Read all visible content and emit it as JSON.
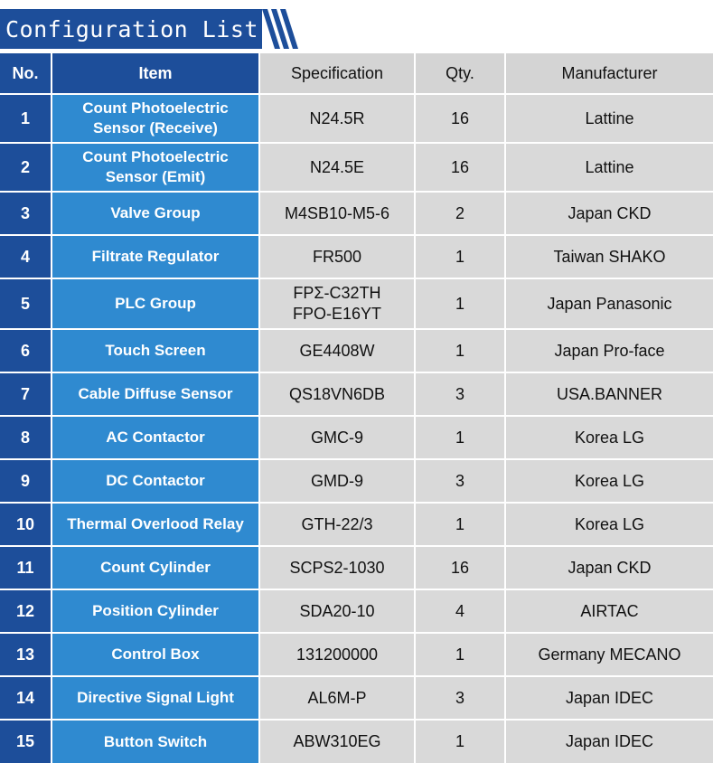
{
  "title": "Configuration List",
  "colors": {
    "dark_blue": "#1d4e9a",
    "item_blue": "#2f8ad0",
    "cell_grey": "#d9d9d9",
    "header_grey": "#d4d4d4"
  },
  "table": {
    "headers": {
      "no": "No.",
      "item": "Item",
      "specification": "Specification",
      "qty": "Qty.",
      "manufacturer": "Manufacturer"
    },
    "rows": [
      {
        "no": "1",
        "item_lines": [
          "Count Photoelectric",
          "Sensor (Receive)"
        ],
        "spec_lines": [
          "N24.5R"
        ],
        "qty": "16",
        "manufacturer": "Lattine"
      },
      {
        "no": "2",
        "item_lines": [
          "Count Photoelectric",
          "Sensor (Emit)"
        ],
        "spec_lines": [
          "N24.5E"
        ],
        "qty": "16",
        "manufacturer": "Lattine"
      },
      {
        "no": "3",
        "item_lines": [
          "Valve Group"
        ],
        "spec_lines": [
          "M4SB10-M5-6"
        ],
        "qty": "2",
        "manufacturer": "Japan CKD"
      },
      {
        "no": "4",
        "item_lines": [
          "Filtrate Regulator"
        ],
        "spec_lines": [
          "FR500"
        ],
        "qty": "1",
        "manufacturer": "Taiwan SHAKO"
      },
      {
        "no": "5",
        "item_lines": [
          "PLC Group"
        ],
        "spec_lines": [
          "FPΣ-C32TH",
          "FPO-E16YT"
        ],
        "qty": "1",
        "manufacturer": "Japan Panasonic"
      },
      {
        "no": "6",
        "item_lines": [
          "Touch Screen"
        ],
        "spec_lines": [
          "GE4408W"
        ],
        "qty": "1",
        "manufacturer": "Japan Pro-face"
      },
      {
        "no": "7",
        "item_lines": [
          "Cable Diffuse Sensor"
        ],
        "spec_lines": [
          "QS18VN6DB"
        ],
        "qty": "3",
        "manufacturer": "USA.BANNER"
      },
      {
        "no": "8",
        "item_lines": [
          "AC Contactor"
        ],
        "spec_lines": [
          "GMC-9"
        ],
        "qty": "1",
        "manufacturer": "Korea LG"
      },
      {
        "no": "9",
        "item_lines": [
          "DC Contactor"
        ],
        "spec_lines": [
          "GMD-9"
        ],
        "qty": "3",
        "manufacturer": "Korea LG"
      },
      {
        "no": "10",
        "item_lines": [
          "Thermal Overlood Relay"
        ],
        "spec_lines": [
          "GTH-22/3"
        ],
        "qty": "1",
        "manufacturer": "Korea LG"
      },
      {
        "no": "11",
        "item_lines": [
          "Count Cylinder"
        ],
        "spec_lines": [
          "SCPS2-1030"
        ],
        "qty": "16",
        "manufacturer": "Japan CKD"
      },
      {
        "no": "12",
        "item_lines": [
          "Position Cylinder"
        ],
        "spec_lines": [
          "SDA20-10"
        ],
        "qty": "4",
        "manufacturer": "AIRTAC"
      },
      {
        "no": "13",
        "item_lines": [
          "Control Box"
        ],
        "spec_lines": [
          "131200000"
        ],
        "qty": "1",
        "manufacturer": "Germany MECANO"
      },
      {
        "no": "14",
        "item_lines": [
          "Directive Signal Light"
        ],
        "spec_lines": [
          "AL6M-P"
        ],
        "qty": "3",
        "manufacturer": "Japan IDEC"
      },
      {
        "no": "15",
        "item_lines": [
          "Button Switch"
        ],
        "spec_lines": [
          "ABW310EG"
        ],
        "qty": "1",
        "manufacturer": "Japan IDEC"
      }
    ]
  }
}
